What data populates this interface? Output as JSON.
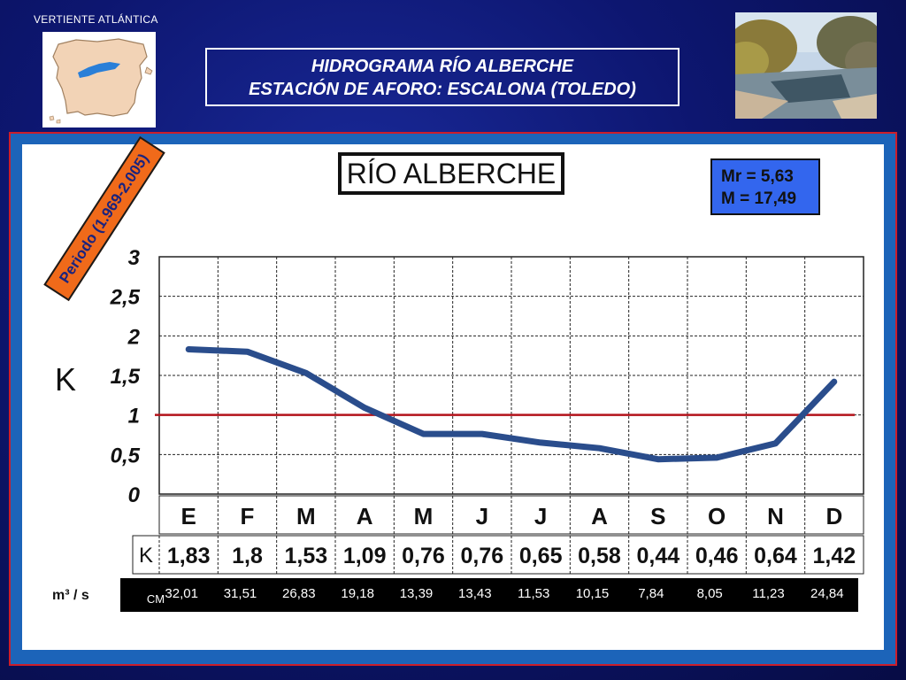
{
  "header": {
    "region_label": "VERTIENTE  ATLÁNTICA",
    "title_line1": "HIDROGRAMA  RÍO  ALBERCHE",
    "title_line2": "ESTACIÓN DE AFORO:  ESCALONA (TOLEDO)"
  },
  "chart_data": {
    "type": "line",
    "title": "RÍO ALBERCHE",
    "subtitle": "Periodo (1.969-2.005)",
    "ylabel": "K",
    "ylim": [
      0,
      3
    ],
    "yticks": [
      "0",
      "0,5",
      "1",
      "1,5",
      "2",
      "2,5",
      "3"
    ],
    "categories": [
      "E",
      "F",
      "M",
      "A",
      "M",
      "J",
      "J",
      "A",
      "S",
      "O",
      "N",
      "D"
    ],
    "series": [
      {
        "values": [
          1.83,
          1.8,
          1.53,
          1.09,
          0.76,
          0.76,
          0.65,
          0.58,
          0.44,
          0.46,
          0.64,
          1.42
        ],
        "color": "#2a4d8c"
      }
    ],
    "reference_line": {
      "value": 1,
      "color": "#b3121a"
    },
    "grid": true,
    "k_row_label": "K",
    "k_values": [
      "1,83",
      "1,8",
      "1,53",
      "1,09",
      "0,76",
      "0,76",
      "0,65",
      "0,58",
      "0,44",
      "0,46",
      "0,64",
      "1,42"
    ],
    "flow_unit_label": "m³ / s",
    "flow_row_label": "CM",
    "flow_values": [
      "32,01",
      "31,51",
      "26,83",
      "19,18",
      "13,39",
      "13,43",
      "11,53",
      "10,15",
      "7,84",
      "8,05",
      "11,23",
      "24,84"
    ],
    "stats": {
      "mr": "Mr = 5,63",
      "m": "M = 17,49"
    }
  },
  "colors": {
    "period_badge": "#f06a1a",
    "stats_box": "#3366ee",
    "frame_border": "#cc1e2a",
    "frame_fill": "#1c64b9"
  }
}
